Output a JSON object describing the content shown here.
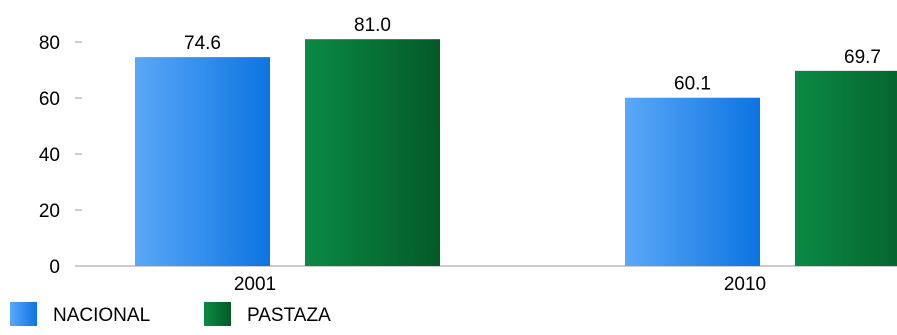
{
  "chart_data": {
    "type": "bar",
    "title": "",
    "xlabel": "",
    "ylabel": "",
    "categories": [
      "2001",
      "2010"
    ],
    "series": [
      {
        "name": "NACIONAL",
        "values": [
          74.6,
          60.1
        ],
        "value_labels": [
          "74.6",
          "60.1"
        ]
      },
      {
        "name": "PASTAZA",
        "values": [
          81.0,
          69.7
        ],
        "value_labels": [
          "81.0",
          "69.7"
        ]
      }
    ],
    "ylim": [
      0,
      80
    ],
    "yticks": [
      "0",
      "20",
      "40",
      "60",
      "80"
    ],
    "grid": false,
    "legend_position": "bottom-left"
  },
  "colors": {
    "NACIONAL": [
      "#5ba8f7",
      "#0c74e2"
    ],
    "PASTAZA": [
      "#0b8a44",
      "#045a28"
    ],
    "axis": "#9a9a9a"
  }
}
